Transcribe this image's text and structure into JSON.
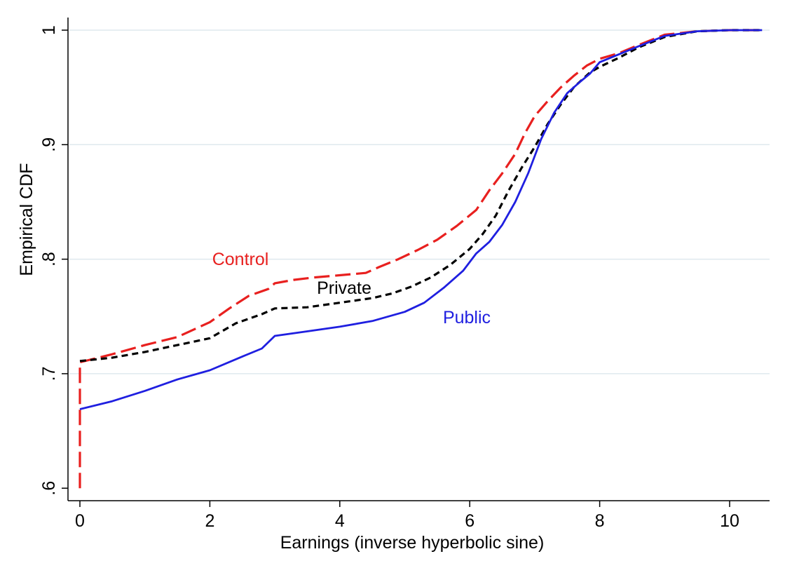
{
  "chart_data": {
    "type": "line",
    "title": "",
    "xlabel": "Earnings (inverse hyperbolic sine)",
    "ylabel": "Empirical CDF",
    "xlim": [
      0,
      10.5
    ],
    "ylim": [
      0.6,
      1.0
    ],
    "x_ticks": [
      0,
      2,
      4,
      6,
      8,
      10
    ],
    "x_tick_labels": [
      "0",
      "2",
      "4",
      "6",
      "8",
      "10"
    ],
    "y_ticks": [
      0.6,
      0.7,
      0.8,
      0.9,
      1.0
    ],
    "y_tick_labels": [
      ".6",
      ".7",
      ".8",
      ".9",
      "1"
    ],
    "grid": "horizontal",
    "legend": "inline labels",
    "series": [
      {
        "name": "Control",
        "color": "#e8201f",
        "style": "long-dash",
        "points": [
          [
            0,
            0.6
          ],
          [
            0,
            0.71
          ],
          [
            0.5,
            0.717
          ],
          [
            1.0,
            0.725
          ],
          [
            1.5,
            0.732
          ],
          [
            2.0,
            0.745
          ],
          [
            2.3,
            0.757
          ],
          [
            2.6,
            0.768
          ],
          [
            2.9,
            0.774
          ],
          [
            3.0,
            0.779
          ],
          [
            3.3,
            0.782
          ],
          [
            3.6,
            0.784
          ],
          [
            4.0,
            0.786
          ],
          [
            4.4,
            0.788
          ],
          [
            4.6,
            0.793
          ],
          [
            4.9,
            0.8
          ],
          [
            5.2,
            0.808
          ],
          [
            5.5,
            0.817
          ],
          [
            5.8,
            0.829
          ],
          [
            6.1,
            0.843
          ],
          [
            6.3,
            0.86
          ],
          [
            6.5,
            0.875
          ],
          [
            6.7,
            0.892
          ],
          [
            6.85,
            0.91
          ],
          [
            7.0,
            0.925
          ],
          [
            7.2,
            0.938
          ],
          [
            7.4,
            0.95
          ],
          [
            7.6,
            0.96
          ],
          [
            7.8,
            0.969
          ],
          [
            8.0,
            0.975
          ],
          [
            8.3,
            0.98
          ],
          [
            8.6,
            0.987
          ],
          [
            9.0,
            0.996
          ],
          [
            9.5,
            0.999
          ],
          [
            10.0,
            1.0
          ],
          [
            10.5,
            1.0
          ]
        ]
      },
      {
        "name": "Private",
        "color": "#000000",
        "style": "short-dash",
        "points": [
          [
            0,
            0.711
          ],
          [
            0.5,
            0.714
          ],
          [
            1.0,
            0.719
          ],
          [
            1.5,
            0.725
          ],
          [
            2.0,
            0.731
          ],
          [
            2.4,
            0.744
          ],
          [
            2.8,
            0.752
          ],
          [
            3.0,
            0.757
          ],
          [
            3.5,
            0.758
          ],
          [
            4.0,
            0.762
          ],
          [
            4.5,
            0.766
          ],
          [
            4.8,
            0.77
          ],
          [
            5.1,
            0.776
          ],
          [
            5.4,
            0.784
          ],
          [
            5.7,
            0.795
          ],
          [
            6.0,
            0.809
          ],
          [
            6.2,
            0.822
          ],
          [
            6.4,
            0.838
          ],
          [
            6.6,
            0.86
          ],
          [
            6.8,
            0.88
          ],
          [
            7.0,
            0.898
          ],
          [
            7.2,
            0.918
          ],
          [
            7.4,
            0.935
          ],
          [
            7.6,
            0.95
          ],
          [
            7.85,
            0.963
          ],
          [
            8.0,
            0.968
          ],
          [
            8.3,
            0.976
          ],
          [
            8.6,
            0.985
          ],
          [
            9.0,
            0.994
          ],
          [
            9.5,
            0.999
          ],
          [
            10.0,
            1.0
          ],
          [
            10.5,
            1.0
          ]
        ]
      },
      {
        "name": "Public",
        "color": "#1f1fe0",
        "style": "solid",
        "points": [
          [
            0,
            0.669
          ],
          [
            0.5,
            0.676
          ],
          [
            1.0,
            0.685
          ],
          [
            1.5,
            0.695
          ],
          [
            2.0,
            0.703
          ],
          [
            2.5,
            0.715
          ],
          [
            2.8,
            0.722
          ],
          [
            3.0,
            0.733
          ],
          [
            3.5,
            0.737
          ],
          [
            4.0,
            0.741
          ],
          [
            4.5,
            0.746
          ],
          [
            5.0,
            0.754
          ],
          [
            5.3,
            0.762
          ],
          [
            5.6,
            0.775
          ],
          [
            5.9,
            0.79
          ],
          [
            6.1,
            0.805
          ],
          [
            6.3,
            0.815
          ],
          [
            6.5,
            0.83
          ],
          [
            6.7,
            0.85
          ],
          [
            6.9,
            0.875
          ],
          [
            7.1,
            0.905
          ],
          [
            7.3,
            0.928
          ],
          [
            7.5,
            0.945
          ],
          [
            7.7,
            0.955
          ],
          [
            7.85,
            0.962
          ],
          [
            8.0,
            0.972
          ],
          [
            8.3,
            0.979
          ],
          [
            8.6,
            0.986
          ],
          [
            9.0,
            0.995
          ],
          [
            9.5,
            0.999
          ],
          [
            10.0,
            1.0
          ],
          [
            10.5,
            1.0
          ]
        ]
      }
    ]
  }
}
